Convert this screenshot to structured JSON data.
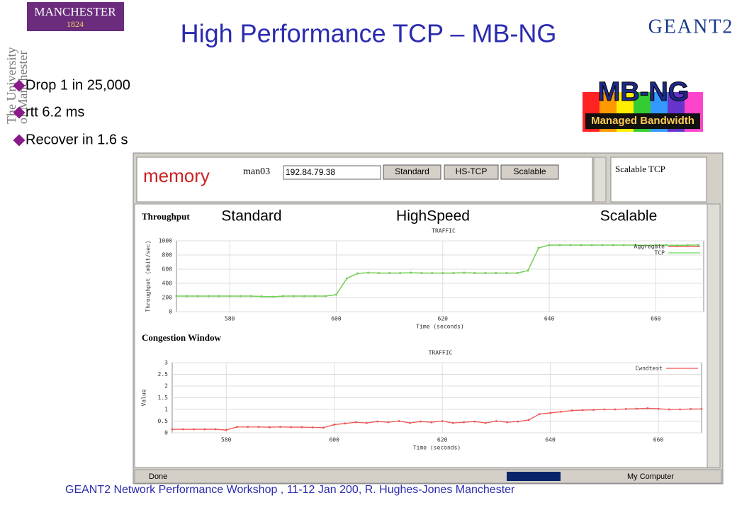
{
  "header": {
    "title": "High Performance TCP – MB-NG",
    "logo_left": "MANCHESTER",
    "logo_left_year": "1824",
    "logo_left_side": [
      "The University",
      "of Manchester"
    ],
    "logo_right": "GEANT2",
    "badge_title": "MB-NG",
    "badge_subtitle": "Managed Bandwidth"
  },
  "bullets": [
    "Drop 1 in 25,000",
    "rtt 6.2 ms",
    "Recover in 1.6 s"
  ],
  "app": {
    "logo": "memory",
    "host_label": "man03",
    "host_value": "192.84.79.38",
    "buttons": [
      "Standard",
      "HS-TCP",
      "Scalable"
    ],
    "selected": "Scalable TCP",
    "status": "Done",
    "zone": "My Computer"
  },
  "phase_labels": [
    "Standard",
    "HighSpeed",
    "Scalable"
  ],
  "charts": [
    {
      "type": "line",
      "panel_title": "Throughput",
      "title": "TRAFFIC",
      "xlabel": "Time (seconds)",
      "ylabel": "Throughput (mbit/sec)",
      "x": [
        570,
        572,
        574,
        576,
        578,
        580,
        582,
        584,
        586,
        588,
        590,
        592,
        594,
        596,
        598,
        600,
        602,
        604,
        606,
        608,
        610,
        612,
        614,
        616,
        618,
        620,
        622,
        624,
        626,
        628,
        630,
        632,
        634,
        636,
        638,
        640,
        642,
        644,
        646,
        648,
        650,
        652,
        654,
        656,
        658,
        660,
        662,
        664,
        666,
        668
      ],
      "series": [
        {
          "name": "Aggregate",
          "color": "#e04040",
          "values": [
            220,
            220,
            220,
            220,
            220,
            220,
            220,
            220,
            215,
            210,
            220,
            220,
            220,
            220,
            220,
            240,
            470,
            540,
            550,
            545,
            545,
            545,
            550,
            545,
            545,
            545,
            545,
            550,
            545,
            545,
            545,
            545,
            545,
            580,
            900,
            940,
            940,
            940,
            940,
            940,
            940,
            940,
            940,
            940,
            935,
            940,
            940,
            935,
            940,
            940
          ]
        },
        {
          "name": "TCP",
          "color": "#66dd55",
          "values": [
            220,
            220,
            220,
            220,
            220,
            220,
            220,
            220,
            215,
            210,
            220,
            220,
            220,
            220,
            220,
            240,
            470,
            540,
            550,
            545,
            545,
            545,
            550,
            545,
            545,
            545,
            545,
            550,
            545,
            545,
            545,
            545,
            545,
            580,
            900,
            940,
            940,
            940,
            940,
            940,
            940,
            940,
            940,
            940,
            935,
            940,
            940,
            935,
            940,
            940
          ]
        }
      ],
      "xlim": [
        570,
        669
      ],
      "xticks": [
        580,
        600,
        620,
        640,
        660
      ],
      "ylim": [
        0,
        1000
      ],
      "yticks": [
        0,
        200,
        400,
        600,
        800,
        1000
      ],
      "grid": true
    },
    {
      "type": "line",
      "panel_title": "Congestion Window",
      "title": "TRAFFIC",
      "xlabel": "Time (seconds)",
      "ylabel": "Value",
      "x": [
        570,
        572,
        574,
        576,
        578,
        580,
        582,
        584,
        586,
        588,
        590,
        592,
        594,
        596,
        598,
        600,
        602,
        604,
        606,
        608,
        610,
        612,
        614,
        616,
        618,
        620,
        622,
        624,
        626,
        628,
        630,
        632,
        634,
        636,
        638,
        640,
        642,
        644,
        646,
        648,
        650,
        652,
        654,
        656,
        658,
        660,
        662,
        664,
        666,
        668
      ],
      "series": [
        {
          "name": "Cwndtest",
          "color": "#ee5555",
          "values": [
            0.15,
            0.15,
            0.15,
            0.15,
            0.15,
            0.12,
            0.25,
            0.25,
            0.25,
            0.24,
            0.25,
            0.24,
            0.24,
            0.23,
            0.22,
            0.35,
            0.4,
            0.45,
            0.42,
            0.48,
            0.45,
            0.5,
            0.42,
            0.48,
            0.45,
            0.5,
            0.42,
            0.45,
            0.48,
            0.42,
            0.5,
            0.45,
            0.48,
            0.55,
            0.8,
            0.85,
            0.9,
            0.95,
            0.97,
            0.98,
            1,
            1,
            1.02,
            1.03,
            1.05,
            1.03,
            1,
            1,
            1.02,
            1.02
          ]
        }
      ],
      "xlim": [
        570,
        668
      ],
      "xticks": [
        580,
        600,
        620,
        640,
        660
      ],
      "ylim": [
        0,
        3
      ],
      "yticks": [
        0,
        0.5,
        1,
        1.5,
        2,
        2.5,
        3
      ],
      "grid": true
    }
  ],
  "footer": "GEANT2 Network Performance Workshop , 11-12 Jan 200,  R. Hughes-Jones  Manchester"
}
